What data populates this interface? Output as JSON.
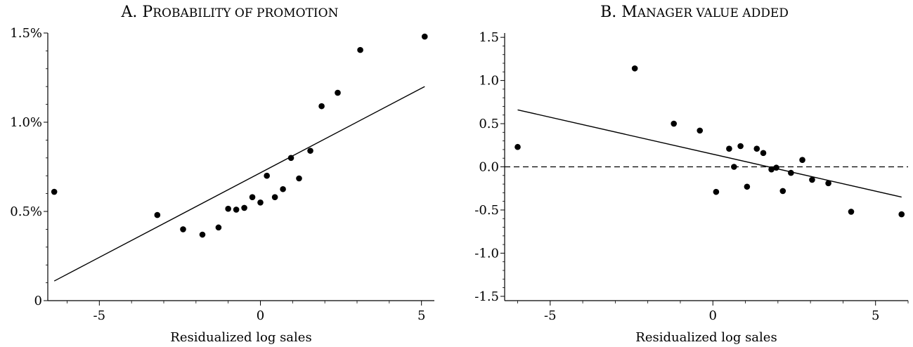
{
  "chart_data": [
    {
      "type": "scatter",
      "title_initial": "A. P",
      "title_rest": "ROBABILITY OF PROMOTION",
      "xlabel": "Residualized log sales",
      "ylabel": "",
      "xlim": [
        -6.6,
        5.4
      ],
      "ylim": [
        0,
        1.5
      ],
      "xticks": [
        -5,
        0,
        5
      ],
      "xtick_labels": [
        "-5",
        "0",
        "5"
      ],
      "yticks": [
        0,
        0.5,
        1.0,
        1.5
      ],
      "ytick_labels": [
        "0",
        "0.5%",
        "1.0%",
        "1.5%"
      ],
      "grid": false,
      "reference_line": null,
      "fit_line": {
        "x": [
          -6.4,
          5.1
        ],
        "y": [
          0.11,
          1.2
        ]
      },
      "points": [
        {
          "x": -6.4,
          "y": 0.61
        },
        {
          "x": -3.2,
          "y": 0.48
        },
        {
          "x": -2.4,
          "y": 0.4
        },
        {
          "x": -1.8,
          "y": 0.37
        },
        {
          "x": -1.3,
          "y": 0.41
        },
        {
          "x": -1.0,
          "y": 0.515
        },
        {
          "x": -0.75,
          "y": 0.51
        },
        {
          "x": -0.5,
          "y": 0.52
        },
        {
          "x": -0.25,
          "y": 0.58
        },
        {
          "x": 0.0,
          "y": 0.55
        },
        {
          "x": 0.2,
          "y": 0.7
        },
        {
          "x": 0.45,
          "y": 0.58
        },
        {
          "x": 0.7,
          "y": 0.625
        },
        {
          "x": 0.95,
          "y": 0.8
        },
        {
          "x": 1.2,
          "y": 0.685
        },
        {
          "x": 1.55,
          "y": 0.84
        },
        {
          "x": 1.9,
          "y": 1.09
        },
        {
          "x": 2.4,
          "y": 1.165
        },
        {
          "x": 3.1,
          "y": 1.405
        },
        {
          "x": 5.1,
          "y": 1.48
        }
      ]
    },
    {
      "type": "scatter",
      "title_initial": "B. M",
      "title_rest": "ANAGER VALUE ADDED",
      "xlabel": "Residualized log sales",
      "ylabel": "",
      "xlim": [
        -6.4,
        6.0
      ],
      "ylim": [
        -1.55,
        1.55
      ],
      "xticks": [
        -5,
        0,
        5
      ],
      "xtick_labels": [
        "-5",
        "0",
        "5"
      ],
      "yticks": [
        -1.5,
        -1.0,
        -0.5,
        0.0,
        0.5,
        1.0,
        1.5
      ],
      "ytick_labels": [
        "-1.5",
        "-1.0",
        "-0.5",
        "0.0",
        "0.5",
        "1.0",
        "1.5"
      ],
      "grid": false,
      "reference_line": {
        "y": 0,
        "style": "dashed"
      },
      "fit_line": {
        "x": [
          -6.0,
          5.8
        ],
        "y": [
          0.66,
          -0.35
        ]
      },
      "points": [
        {
          "x": -6.0,
          "y": 0.23
        },
        {
          "x": -2.4,
          "y": 1.14
        },
        {
          "x": -1.2,
          "y": 0.5
        },
        {
          "x": -0.4,
          "y": 0.42
        },
        {
          "x": 0.1,
          "y": -0.29
        },
        {
          "x": 0.5,
          "y": 0.21
        },
        {
          "x": 0.65,
          "y": 0.0
        },
        {
          "x": 0.85,
          "y": 0.24
        },
        {
          "x": 1.05,
          "y": -0.23
        },
        {
          "x": 1.35,
          "y": 0.21
        },
        {
          "x": 1.55,
          "y": 0.16
        },
        {
          "x": 1.8,
          "y": -0.03
        },
        {
          "x": 1.95,
          "y": -0.01
        },
        {
          "x": 2.15,
          "y": -0.28
        },
        {
          "x": 2.4,
          "y": -0.07
        },
        {
          "x": 2.75,
          "y": 0.08
        },
        {
          "x": 3.05,
          "y": -0.15
        },
        {
          "x": 3.55,
          "y": -0.19
        },
        {
          "x": 4.25,
          "y": -0.52
        },
        {
          "x": 5.8,
          "y": -0.55
        }
      ]
    }
  ]
}
